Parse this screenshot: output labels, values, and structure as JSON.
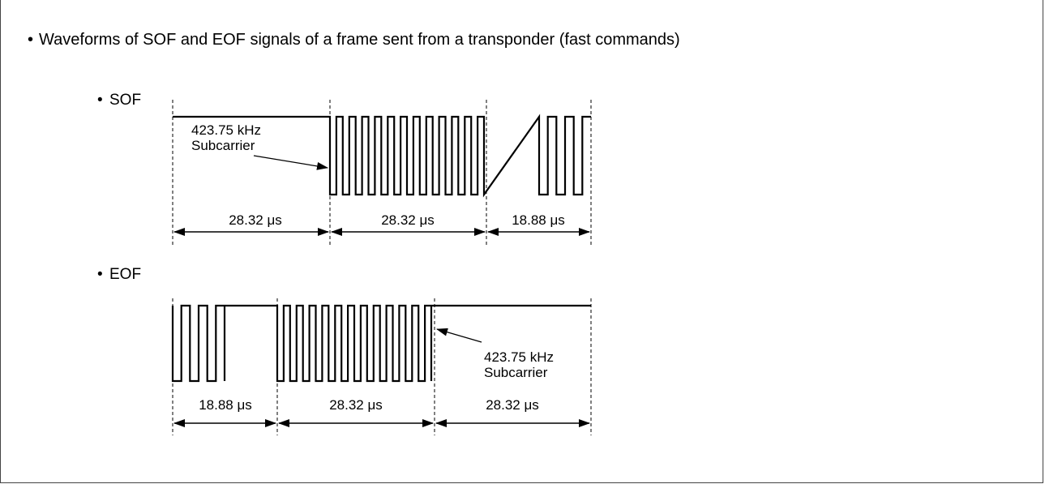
{
  "title": "Waveforms of SOF and EOF signals of a frame sent from a transponder (fast commands)",
  "sof": {
    "heading": "SOF",
    "subcarrier_line1": "423.75 kHz",
    "subcarrier_line2": "Subcarrier",
    "durations": [
      "28.32 μs",
      "28.32 μs",
      "18.88 μs"
    ]
  },
  "eof": {
    "heading": "EOF",
    "subcarrier_line1": "423.75 kHz",
    "subcarrier_line2": "Subcarrier",
    "durations": [
      "18.88 μs",
      "28.32 μs",
      "28.32 μs"
    ]
  },
  "bullet": "•"
}
